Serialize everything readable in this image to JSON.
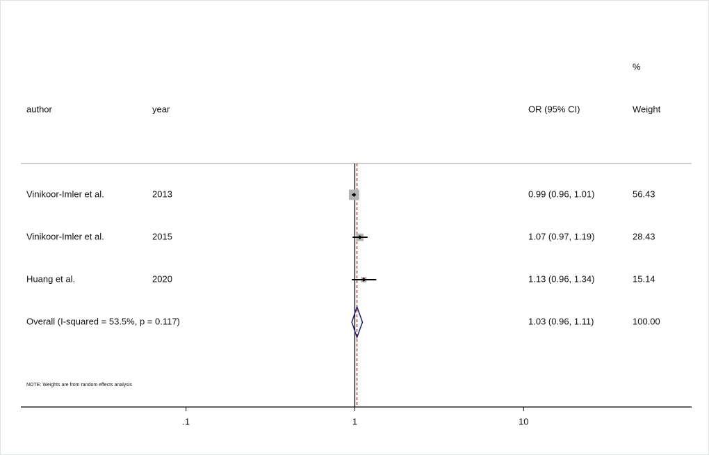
{
  "chart_data": {
    "type": "forest",
    "columns": {
      "author": "author",
      "year": "year",
      "effect": "OR (95% CI)",
      "weight_top": "%",
      "weight": "Weight"
    },
    "studies": [
      {
        "author": "Vinikoor-Imler et al.",
        "year": 2013,
        "or": 0.99,
        "ci": [
          0.96,
          1.01
        ],
        "label": "0.99 (0.96, 1.01)",
        "weight": 56.43
      },
      {
        "author": "Vinikoor-Imler et al.",
        "year": 2015,
        "or": 1.07,
        "ci": [
          0.97,
          1.19
        ],
        "label": "1.07 (0.97, 1.19)",
        "weight": 28.43
      },
      {
        "author": "Huang et al.",
        "year": 2020,
        "or": 1.13,
        "ci": [
          0.96,
          1.34
        ],
        "label": "1.13 (0.96, 1.34)",
        "weight": 15.14
      }
    ],
    "overall": {
      "text": "Overall  (I-squared = 53.5%, p = 0.117)",
      "or": 1.03,
      "ci": [
        0.96,
        1.11
      ],
      "label": "1.03 (0.96, 1.11)",
      "weight": 100,
      "weight_label": "100.00"
    },
    "note": "NOTE: Weights are from random effects analysis",
    "log_scale": true,
    "reference_line": 1,
    "xlim": [
      0.0105,
      99
    ],
    "xticks": [
      {
        "value": 0.1,
        "label": ".1"
      },
      1,
      10
    ]
  }
}
